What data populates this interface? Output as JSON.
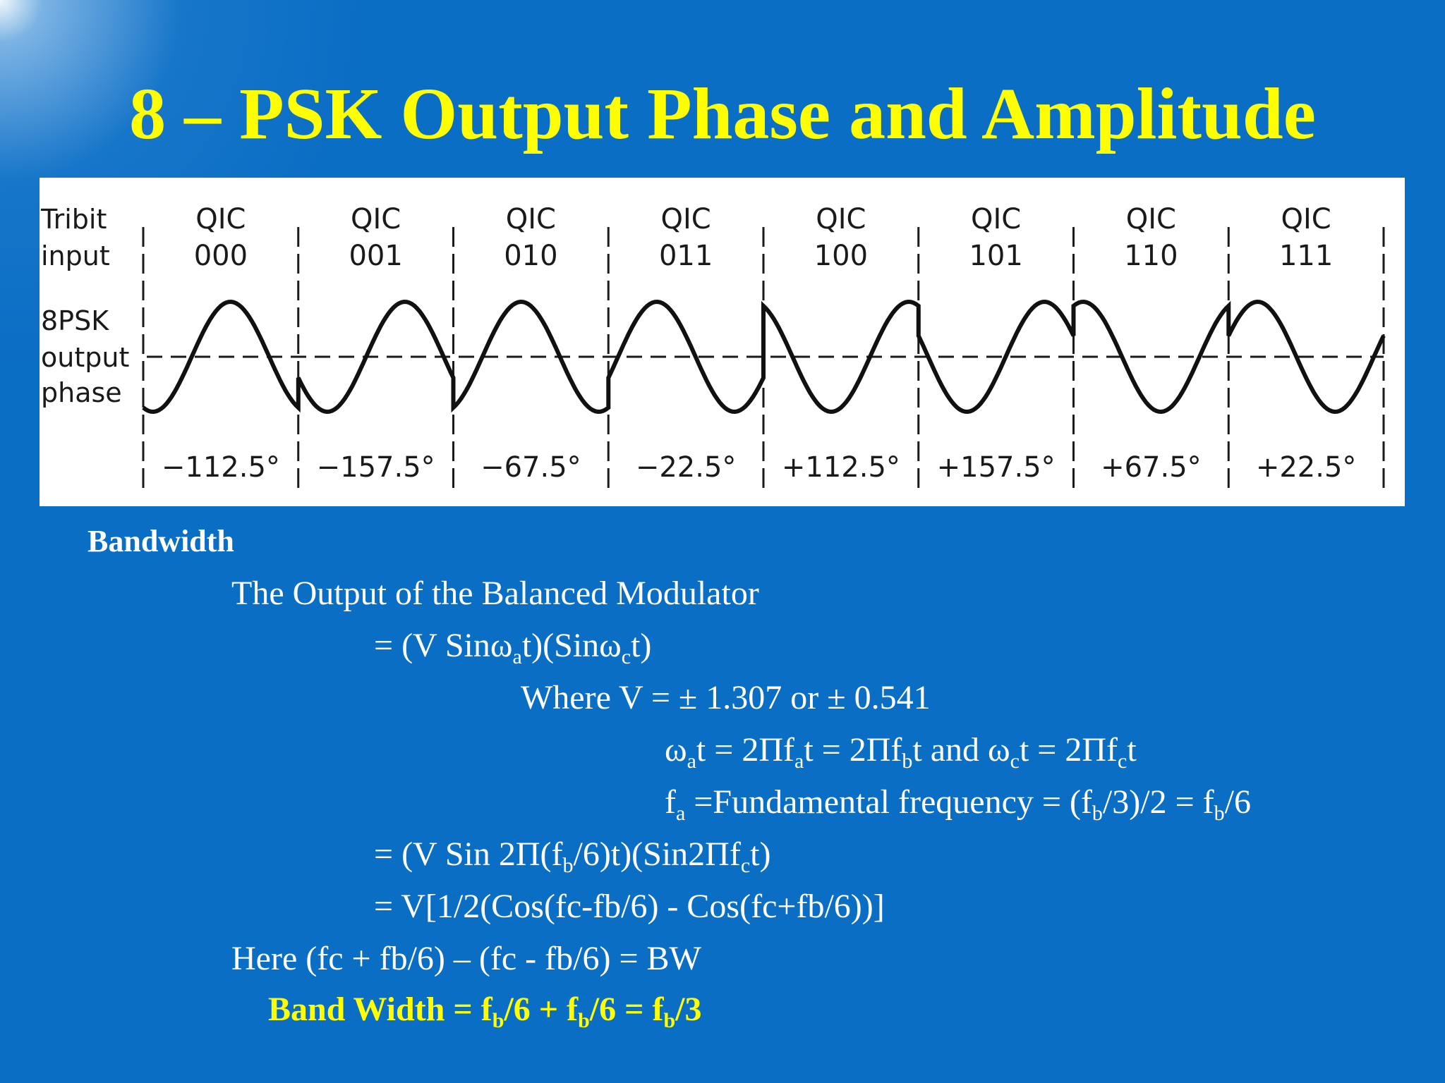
{
  "slide": {
    "title": "8 – PSK Output Phase and Amplitude"
  },
  "figure": {
    "row_labels": {
      "tribit_line1": "Tribit",
      "tribit_line2": "input",
      "output_line1": "8PSK",
      "output_line2": "output",
      "output_line3": "phase"
    },
    "columns": [
      {
        "qic": "QIC",
        "code": "000",
        "phase": "−112.5°"
      },
      {
        "qic": "QIC",
        "code": "001",
        "phase": "−157.5°"
      },
      {
        "qic": "QIC",
        "code": "010",
        "phase": "−67.5°"
      },
      {
        "qic": "QIC",
        "code": "011",
        "phase": "−22.5°"
      },
      {
        "qic": "QIC",
        "code": "100",
        "phase": "+112.5°"
      },
      {
        "qic": "QIC",
        "code": "101",
        "phase": "+157.5°"
      },
      {
        "qic": "QIC",
        "code": "110",
        "phase": "+67.5°"
      },
      {
        "qic": "QIC",
        "code": "111",
        "phase": "+22.5°"
      }
    ]
  },
  "bandwidth": {
    "heading": "Bandwidth",
    "line1": "The Output of the Balanced Modulator",
    "line2": {
      "a": "= (V Sinω",
      "b": "a",
      "c": "t)(Sinω",
      "d": "c",
      "e": "t)"
    },
    "line3": "Where V = ± 1.307 or ± 0.541",
    "line4": {
      "a": "ω",
      "b": "a",
      "c": "t = 2Πf",
      "d": "a",
      "e": "t = 2Πf",
      "f": "b",
      "g": "t  and ω",
      "h": "c",
      "i": "t = 2Πf",
      "j": "c",
      "k": "t"
    },
    "line5": {
      "a": "f",
      "b": "a",
      "c": " =Fundamental frequency = (f",
      "d": "b",
      "e": "/3)/2 = f",
      "f": "b",
      "g": "/6"
    },
    "line6": {
      "a": "= (V Sin 2Π(f",
      "b": "b",
      "c": "/6)t)(Sin2Πf",
      "d": "c",
      "e": "t)"
    },
    "line7": "=  V[1/2(Cos(fc-fb/6) - Cos(fc+fb/6))]",
    "line8": "Here   (fc + fb/6) – (fc - fb/6) = BW",
    "line9": {
      "a": "Band Width = f",
      "b": "b",
      "c": "/6 + f",
      "d": "b",
      "e": "/6 = f",
      "f": "b",
      "g": "/3"
    }
  }
}
